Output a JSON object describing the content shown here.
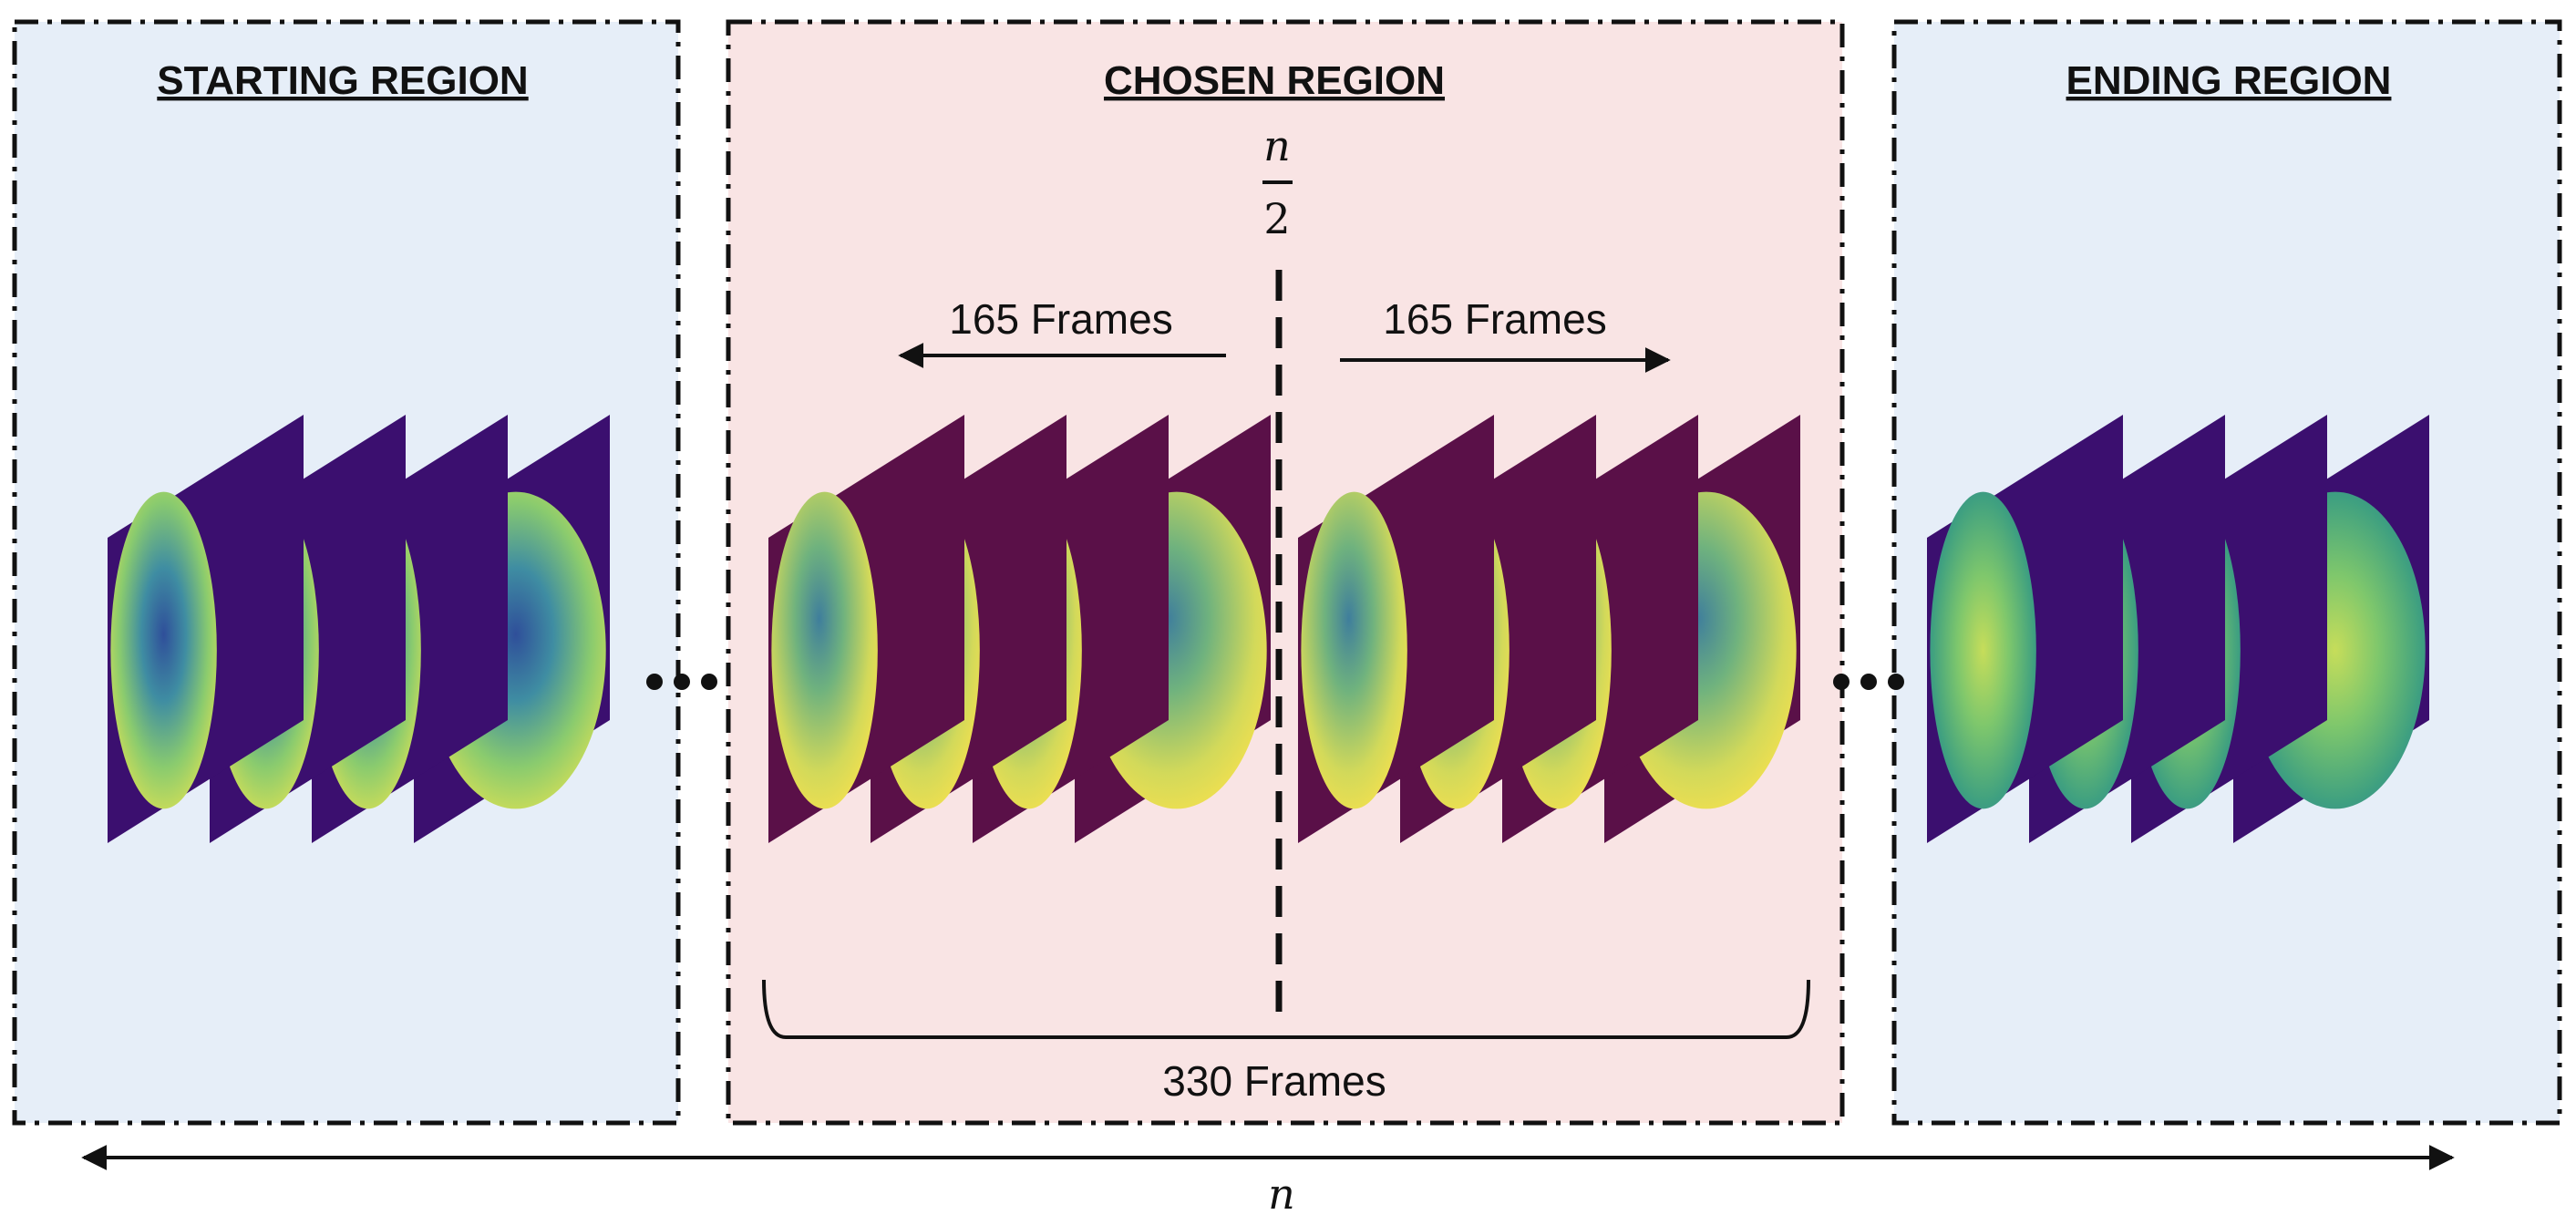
{
  "regions": {
    "starting": {
      "title": "STARTING REGION",
      "fill": "#e6eef8",
      "frame_bg": "#3b0f6f",
      "style": "blue"
    },
    "chosen": {
      "title": "CHOSEN REGION",
      "fill": "#f9e4e4",
      "frame_bg": "#5a1048",
      "style": "warm"
    },
    "ending": {
      "title": "ENDING REGION",
      "fill": "#e6eef8",
      "frame_bg": "#3b0f6f",
      "style": "green"
    }
  },
  "chosen": {
    "midpoint": {
      "numerator": "n",
      "denominator": "2"
    },
    "left_label": "165 Frames",
    "right_label": "165 Frames",
    "total_label": "330 Frames"
  },
  "bottom": {
    "label": "n"
  },
  "ellipsis": "…",
  "colors": {
    "viridis_yellow": "#f1e35a",
    "viridis_green": "#7cc97a",
    "viridis_teal": "#3e8fa0",
    "viridis_blue": "#3b5a9f"
  }
}
